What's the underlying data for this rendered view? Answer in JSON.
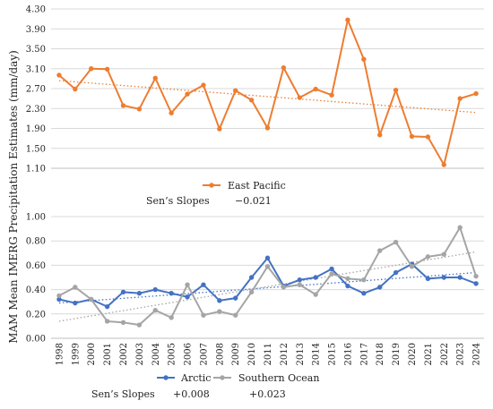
{
  "ylabel": "MAM Mean IMERG Precipitation Estimates (mm/day)",
  "chart_data": [
    {
      "type": "line",
      "categories": [
        "1998",
        "1999",
        "2000",
        "2001",
        "2002",
        "2003",
        "2004",
        "2005",
        "2006",
        "2007",
        "2008",
        "2009",
        "2010",
        "2011",
        "2012",
        "2013",
        "2014",
        "2015",
        "2016",
        "2017",
        "2018",
        "2019",
        "2020",
        "2021",
        "2022",
        "2023",
        "2024"
      ],
      "ylim": [
        1.1,
        4.3
      ],
      "yticks": [
        "1.10",
        "1.50",
        "1.90",
        "2.30",
        "2.70",
        "3.10",
        "3.50",
        "3.90",
        "4.30"
      ],
      "grid": true,
      "legend_position": "bottom",
      "series": [
        {
          "name": "East Pacific",
          "color": "#ED7D31",
          "values": [
            2.97,
            2.69,
            3.1,
            3.09,
            2.36,
            2.29,
            2.91,
            2.21,
            2.59,
            2.77,
            1.89,
            2.66,
            2.47,
            1.91,
            3.12,
            2.52,
            2.69,
            2.57,
            4.08,
            3.29,
            1.77,
            2.67,
            1.74,
            1.73,
            1.17,
            2.5,
            2.6
          ],
          "trend": [
            2.86,
            2.22
          ]
        }
      ],
      "sens_slopes_label": "Sen’s Slopes",
      "sens_slopes": [
        "−0.021"
      ]
    },
    {
      "type": "line",
      "categories": [
        "1998",
        "1999",
        "2000",
        "2001",
        "2002",
        "2003",
        "2004",
        "2005",
        "2006",
        "2007",
        "2008",
        "2009",
        "2010",
        "2011",
        "2012",
        "2013",
        "2014",
        "2015",
        "2016",
        "2017",
        "2018",
        "2019",
        "2020",
        "2021",
        "2022",
        "2023",
        "2024"
      ],
      "ylim": [
        0,
        1
      ],
      "yticks": [
        "0.00",
        "0.20",
        "0.40",
        "0.60",
        "0.80",
        "1.00"
      ],
      "grid": true,
      "legend_position": "bottom",
      "series": [
        {
          "name": "Arctic",
          "color": "#4472C4",
          "values": [
            0.32,
            0.29,
            0.32,
            0.26,
            0.38,
            0.37,
            0.4,
            0.37,
            0.34,
            0.44,
            0.31,
            0.33,
            0.5,
            0.66,
            0.43,
            0.48,
            0.5,
            0.57,
            0.43,
            0.37,
            0.42,
            0.54,
            0.61,
            0.49,
            0.5,
            0.5,
            0.45
          ],
          "trend": [
            0.29,
            0.54
          ]
        },
        {
          "name": "Southern Ocean",
          "color": "#A5A5A5",
          "values": [
            0.35,
            0.42,
            0.32,
            0.14,
            0.13,
            0.11,
            0.23,
            0.17,
            0.44,
            0.19,
            0.22,
            0.19,
            0.38,
            0.59,
            0.42,
            0.44,
            0.36,
            0.53,
            0.49,
            0.48,
            0.72,
            0.79,
            0.59,
            0.67,
            0.69,
            0.91,
            0.51
          ],
          "trend": [
            0.14,
            0.71
          ]
        }
      ],
      "sens_slopes_label": "Sen’s Slopes",
      "sens_slopes": [
        "+0.008",
        "+0.023"
      ]
    }
  ]
}
